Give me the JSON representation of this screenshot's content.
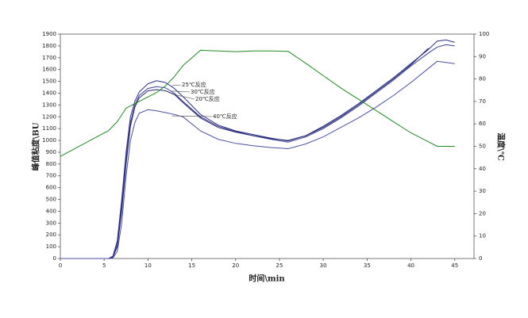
{
  "chart_data": {
    "type": "line",
    "x_label": "时间\\min",
    "y_label": "峰值粘度\\BU",
    "y2_label": "温度\\℃",
    "x": [
      0,
      5.5,
      6,
      6.5,
      7,
      7.5,
      8,
      8.5,
      9,
      10,
      11,
      12,
      13,
      14,
      16,
      18,
      20,
      22,
      24,
      26,
      28,
      30,
      32,
      34,
      36,
      38,
      40,
      42,
      43,
      44,
      45
    ],
    "xlim": [
      0,
      47.2
    ],
    "xticks": [
      0,
      5,
      10,
      15,
      20,
      25,
      30,
      35,
      40,
      45
    ],
    "ylim": [
      0,
      1900
    ],
    "yticks": [
      0,
      100,
      200,
      300,
      400,
      500,
      600,
      700,
      800,
      900,
      1000,
      1100,
      1200,
      1300,
      1400,
      1500,
      1600,
      1700,
      1800,
      1900
    ],
    "y2lim": [
      0,
      100
    ],
    "y2ticks": [
      0,
      10,
      20,
      30,
      40,
      50,
      60,
      70,
      80,
      90,
      100
    ],
    "series": [
      {
        "name": "25℃反应",
        "color": "#2b2f8a",
        "values": [
          0,
          0,
          20,
          150,
          500,
          900,
          1200,
          1330,
          1410,
          1480,
          1505,
          1490,
          1440,
          1370,
          1220,
          1130,
          1080,
          1050,
          1020,
          995,
          1040,
          1120,
          1210,
          1310,
          1420,
          1530,
          1650,
          1770,
          1840,
          1850,
          1830
        ]
      },
      {
        "name": "30℃反应",
        "color": "#3a3f95",
        "values": [
          0,
          0,
          15,
          120,
          450,
          850,
          1150,
          1300,
          1380,
          1440,
          1455,
          1445,
          1400,
          1330,
          1200,
          1120,
          1075,
          1040,
          1010,
          985,
          1030,
          1100,
          1190,
          1290,
          1400,
          1510,
          1630,
          1740,
          1790,
          1810,
          1800
        ]
      },
      {
        "name": "20℃反应",
        "color": "#25286f",
        "values": [
          0,
          0,
          10,
          100,
          400,
          800,
          1120,
          1280,
          1360,
          1420,
          1430,
          1420,
          1390,
          1320,
          1190,
          1110,
          1070,
          1040,
          1015,
          1000,
          1040,
          1110,
          1200,
          1300,
          1410,
          1520,
          1640,
          1780,
          null,
          null,
          null
        ]
      },
      {
        "name": "40℃反应",
        "color": "#4a4fa5",
        "values": [
          0,
          0,
          5,
          60,
          300,
          700,
          1000,
          1150,
          1230,
          1260,
          1250,
          1235,
          1220,
          1200,
          1080,
          1010,
          975,
          955,
          940,
          930,
          970,
          1030,
          1110,
          1190,
          1280,
          1380,
          1490,
          1610,
          1670,
          1660,
          1650
        ]
      },
      {
        "color": "#1f8a1f",
        "axis": "y2",
        "values": [
          45.5,
          57,
          59,
          61,
          64,
          67,
          68,
          69,
          70,
          72,
          74,
          77,
          81,
          86,
          92.8,
          92.5,
          92.2,
          92.5,
          92.5,
          92.3,
          87,
          81.5,
          76,
          71,
          66,
          61,
          56,
          52,
          50,
          50,
          50
        ]
      }
    ]
  }
}
